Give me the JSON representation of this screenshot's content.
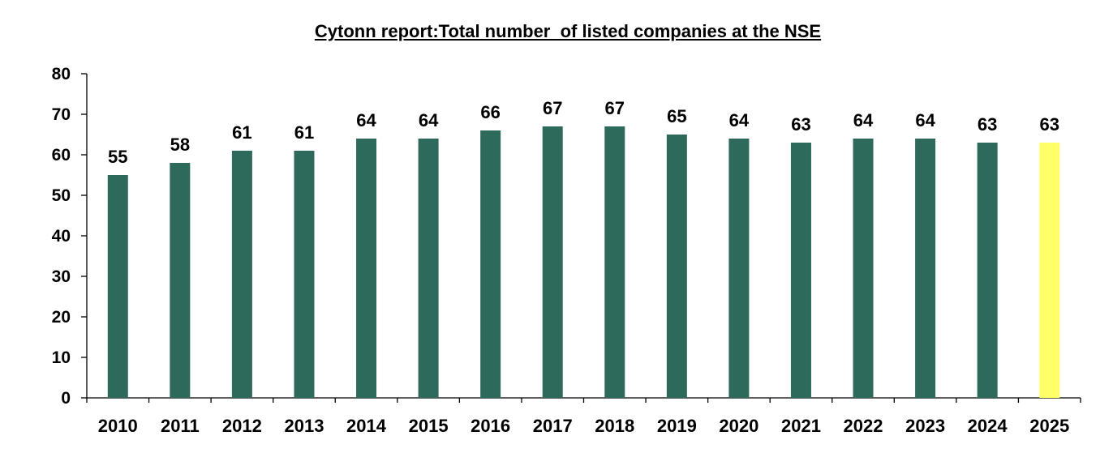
{
  "chart_data": {
    "type": "bar",
    "title": "Cytonn report:Total number  of listed companies at the NSE",
    "xlabel": "",
    "ylabel": "",
    "ylim": [
      0,
      80
    ],
    "yticks": [
      0,
      10,
      20,
      30,
      40,
      50,
      60,
      70,
      80
    ],
    "grid": false,
    "legend": "none",
    "categories": [
      "2010",
      "2011",
      "2012",
      "2013",
      "2014",
      "2015",
      "2016",
      "2017",
      "2018",
      "2019",
      "2020",
      "2021",
      "2022",
      "2023",
      "2024",
      "2025"
    ],
    "values": [
      55,
      58,
      61,
      61,
      64,
      64,
      66,
      67,
      67,
      65,
      64,
      63,
      64,
      64,
      63,
      63
    ],
    "bar_colors": [
      "#2e6a5c",
      "#2e6a5c",
      "#2e6a5c",
      "#2e6a5c",
      "#2e6a5c",
      "#2e6a5c",
      "#2e6a5c",
      "#2e6a5c",
      "#2e6a5c",
      "#2e6a5c",
      "#2e6a5c",
      "#2e6a5c",
      "#2e6a5c",
      "#2e6a5c",
      "#2e6a5c",
      "#ffff66"
    ],
    "data_labels": [
      "55",
      "58",
      "61",
      "61",
      "64",
      "64",
      "66",
      "67",
      "67",
      "65",
      "64",
      "63",
      "64",
      "64",
      "63",
      "63"
    ]
  }
}
